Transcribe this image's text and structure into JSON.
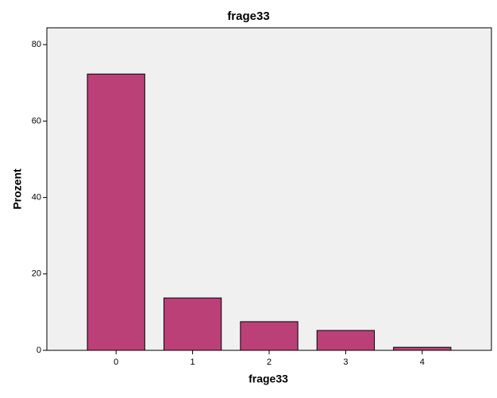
{
  "chart_data": {
    "type": "bar",
    "title": "frage33",
    "x_label": "frage33",
    "y_label": "Prozent",
    "categories": [
      "0",
      "1",
      "2",
      "3",
      "4"
    ],
    "values": [
      72.3,
      13.7,
      7.5,
      5.2,
      0.8
    ],
    "color": "#bc4078",
    "ylim": [
      0,
      84.4
    ],
    "yticks": [
      0,
      20,
      40,
      60,
      80
    ],
    "grid": false
  }
}
